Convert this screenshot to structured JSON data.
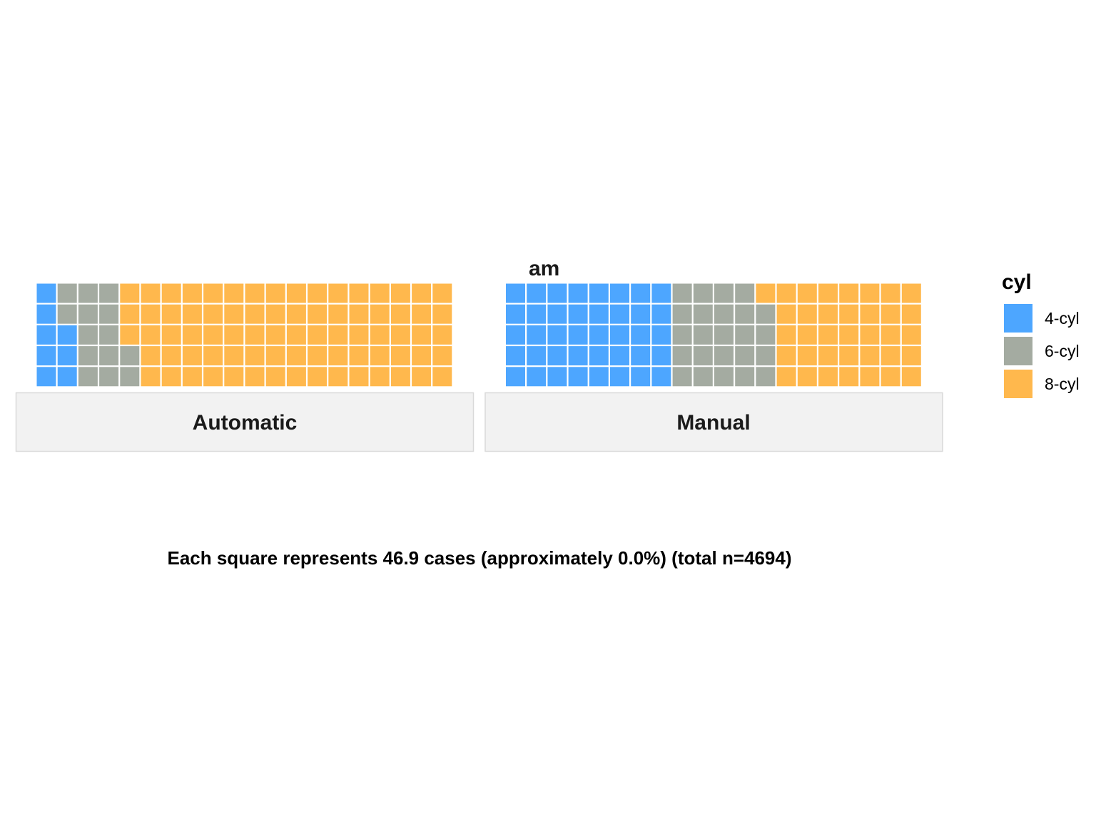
{
  "chart_data": {
    "type": "waffle",
    "facet_variable": "am",
    "grid_rows": 5,
    "grid_cols": 20,
    "fill_order": "column-major-bottom-up",
    "legend": {
      "title": "cyl",
      "placement": "right"
    },
    "categories": [
      "4-cyl",
      "6-cyl",
      "8-cyl"
    ],
    "colors": {
      "4-cyl": "#4DA6FF",
      "6-cyl": "#A4ABA1",
      "8-cyl": "#FFB84D"
    },
    "panels": [
      {
        "label": "Automatic",
        "counts": {
          "4-cyl": 8,
          "6-cyl": 14,
          "8-cyl": 78
        }
      },
      {
        "label": "Manual",
        "counts": {
          "4-cyl": 40,
          "6-cyl": 24,
          "8-cyl": 36
        }
      }
    ],
    "caption": "Each square represents 46.9 cases (approximately 0.0%) (total n=4694)"
  }
}
